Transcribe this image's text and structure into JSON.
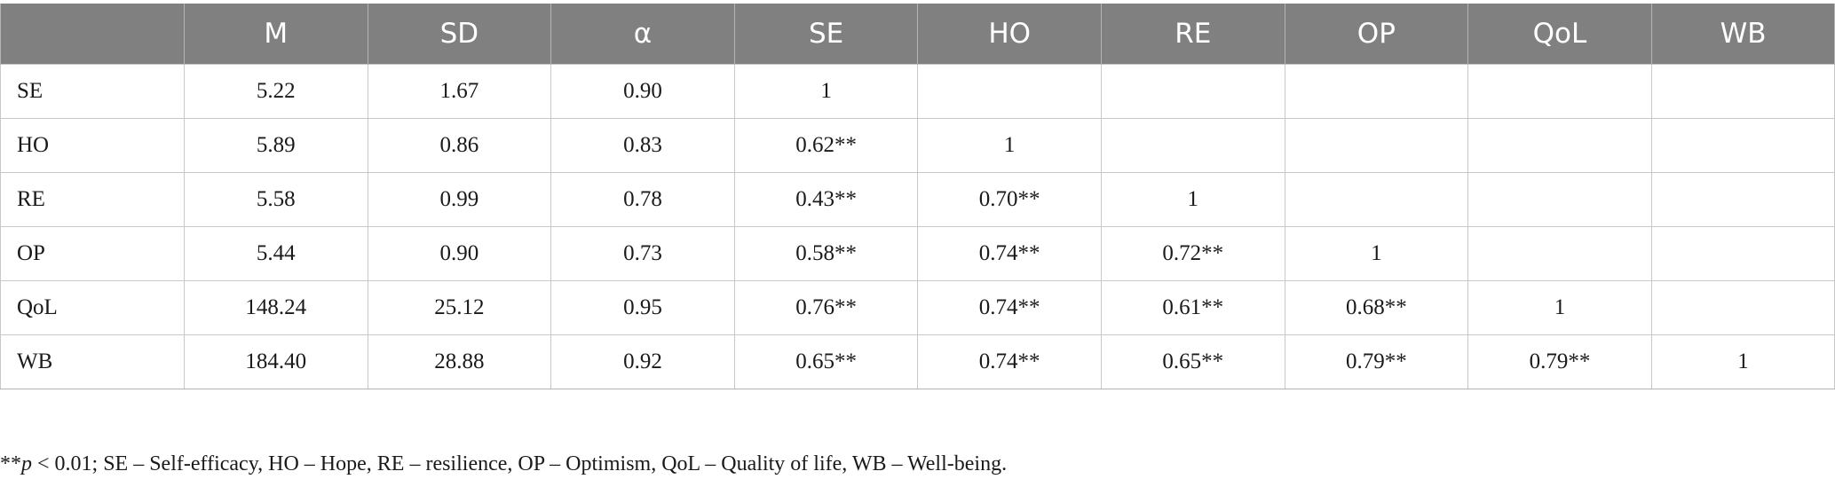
{
  "table": {
    "headers": [
      "",
      "M",
      "SD",
      "α",
      "SE",
      "HO",
      "RE",
      "OP",
      "QoL",
      "WB"
    ],
    "rows": [
      [
        "SE",
        "5.22",
        "1.67",
        "0.90",
        "1",
        "",
        "",
        "",
        "",
        ""
      ],
      [
        "HO",
        "5.89",
        "0.86",
        "0.83",
        "0.62**",
        "1",
        "",
        "",
        "",
        ""
      ],
      [
        "RE",
        "5.58",
        "0.99",
        "0.78",
        "0.43**",
        "0.70**",
        "1",
        "",
        "",
        ""
      ],
      [
        "OP",
        "5.44",
        "0.90",
        "0.73",
        "0.58**",
        "0.74**",
        "0.72**",
        "1",
        "",
        ""
      ],
      [
        "QoL",
        "148.24",
        "25.12",
        "0.95",
        "0.76**",
        "0.74**",
        "0.61**",
        "0.68**",
        "1",
        ""
      ],
      [
        "WB",
        "184.40",
        "28.88",
        "0.92",
        "0.65**",
        "0.74**",
        "0.65**",
        "0.79**",
        "0.79**",
        "1"
      ]
    ]
  },
  "footnote": {
    "prefix": "**",
    "p_symbol": "p",
    "text": " < 0.01; SE – Self-efficacy, HO – Hope, RE – resilience, OP – Optimism, QoL – Quality of life, WB – Well-being."
  }
}
